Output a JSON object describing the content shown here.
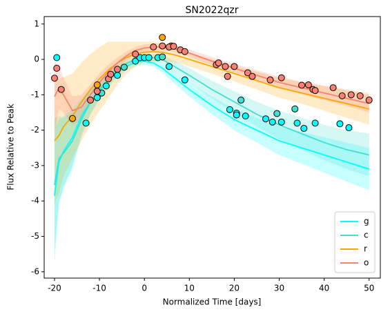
{
  "chart_data": {
    "type": "line",
    "title": "SN2022qzr",
    "xlabel": "Normalized Time [days]",
    "ylabel": "Flux Relative to Peak",
    "xlim": [
      -22.3,
      52.5
    ],
    "ylim": [
      -6.18,
      1.21
    ],
    "xticks": [
      -20,
      -10,
      0,
      10,
      20,
      30,
      40,
      50
    ],
    "yticks": [
      1,
      0,
      -1,
      -2,
      -3,
      -4,
      -5,
      -6
    ],
    "legend": "lower right",
    "x": [
      -20,
      -19,
      -18,
      -16,
      -14,
      -12,
      -10,
      -8,
      -6,
      -4,
      -2,
      0,
      2,
      4,
      6,
      8,
      10,
      15,
      20,
      25,
      30,
      35,
      40,
      45,
      50
    ],
    "series": [
      {
        "name": "g",
        "color": "#00ffff",
        "values": [
          -3.85,
          -2.9,
          -2.6,
          -2.2,
          -1.6,
          -1.2,
          -0.9,
          -0.6,
          -0.35,
          -0.2,
          -0.08,
          -0.05,
          -0.1,
          -0.25,
          -0.45,
          -0.65,
          -0.85,
          -1.3,
          -1.7,
          -2.0,
          -2.3,
          -2.5,
          -2.7,
          -2.9,
          -3.1
        ],
        "lower": [
          -5.75,
          -4.1,
          -3.6,
          -3.0,
          -2.1,
          -1.55,
          -1.15,
          -0.8,
          -0.5,
          -0.32,
          -0.18,
          -0.15,
          -0.2,
          -0.37,
          -0.6,
          -0.83,
          -1.05,
          -1.55,
          -2.0,
          -2.35,
          -2.7,
          -2.95,
          -3.2,
          -3.45,
          -3.7
        ],
        "upper": [
          -1.95,
          -1.7,
          -1.6,
          -1.4,
          -1.1,
          -0.85,
          -0.65,
          -0.4,
          -0.2,
          -0.08,
          0.02,
          0.05,
          0.0,
          -0.13,
          -0.3,
          -0.47,
          -0.65,
          -1.05,
          -1.4,
          -1.65,
          -1.9,
          -2.05,
          -2.2,
          -2.35,
          -2.5
        ],
        "points_x": [
          -19.5,
          -13,
          -10.5,
          -8.5,
          -6,
          -2,
          -1,
          0,
          1,
          3,
          5.5,
          9,
          19,
          20.5,
          20.5,
          22.5,
          27,
          28.5,
          30.5,
          34,
          35.5,
          38,
          43.5,
          45.5
        ],
        "points_y": [
          0.05,
          -1.8,
          -1.08,
          -0.75,
          -0.45,
          -0.05,
          0.05,
          0.05,
          0.05,
          0.05,
          -0.2,
          -0.58,
          -1.42,
          -1.52,
          -1.57,
          -1.6,
          -1.68,
          -1.77,
          -1.77,
          -1.8,
          -1.95,
          -1.8,
          -1.82,
          -1.93
        ]
      },
      {
        "name": "c",
        "color": "#40e0d0",
        "values": [
          -3.55,
          -2.8,
          -2.65,
          -2.3,
          -1.7,
          -1.2,
          -0.85,
          -0.55,
          -0.3,
          -0.12,
          0.0,
          0.05,
          0.05,
          0.0,
          -0.15,
          -0.3,
          -0.45,
          -0.85,
          -1.2,
          -1.55,
          -1.85,
          -2.1,
          -2.35,
          -2.55,
          -2.7
        ],
        "lower": [
          -5.45,
          -4.0,
          -3.65,
          -3.1,
          -2.2,
          -1.55,
          -1.1,
          -0.75,
          -0.45,
          -0.24,
          -0.1,
          -0.05,
          -0.05,
          -0.12,
          -0.3,
          -0.48,
          -0.65,
          -1.1,
          -1.5,
          -1.9,
          -2.25,
          -2.55,
          -2.85,
          -3.1,
          -3.3
        ],
        "upper": [
          -1.65,
          -1.6,
          -1.65,
          -1.5,
          -1.2,
          -0.85,
          -0.6,
          -0.35,
          -0.15,
          0.0,
          0.1,
          0.15,
          0.15,
          0.12,
          0.0,
          -0.12,
          -0.25,
          -0.6,
          -0.9,
          -1.2,
          -1.45,
          -1.65,
          -1.85,
          -2.0,
          -2.1
        ],
        "points_x": [
          -9.5,
          -4.5,
          4,
          21.5,
          29.5,
          33.5
        ],
        "points_y": [
          -0.95,
          -0.22,
          0.07,
          -1.15,
          -1.53,
          -1.4
        ]
      },
      {
        "name": "r",
        "color": "#ffa500",
        "values": [
          -2.3,
          -2.15,
          -1.9,
          -1.6,
          -1.2,
          -0.85,
          -0.55,
          -0.3,
          -0.1,
          0.05,
          0.15,
          0.2,
          0.22,
          0.2,
          0.15,
          0.08,
          0.0,
          -0.2,
          -0.4,
          -0.6,
          -0.8,
          -0.95,
          -1.1,
          -1.25,
          -1.4
        ],
        "lower": [
          -4.1,
          -3.75,
          -3.3,
          -2.8,
          -2.3,
          -1.85,
          -1.45,
          -1.1,
          -0.7,
          -0.4,
          -0.2,
          -0.1,
          -0.06,
          -0.05,
          -0.07,
          -0.12,
          -0.2,
          -0.4,
          -0.62,
          -0.85,
          -1.08,
          -1.25,
          -1.45,
          -1.65,
          -1.85
        ],
        "upper": [
          -0.5,
          -0.55,
          -0.5,
          -0.4,
          -0.1,
          0.15,
          0.35,
          0.5,
          0.5,
          0.5,
          0.5,
          0.5,
          0.5,
          0.45,
          0.37,
          0.28,
          0.2,
          0.0,
          -0.18,
          -0.35,
          -0.52,
          -0.65,
          -0.75,
          -0.85,
          -0.95
        ],
        "points_x": [
          -16,
          -10.5,
          4,
          6
        ],
        "points_y": [
          -1.67,
          -0.72,
          0.62,
          0.38
        ]
      },
      {
        "name": "o",
        "color": "#fa8072",
        "values": [
          -1.05,
          -0.8,
          -1.0,
          -1.45,
          -1.35,
          -1.0,
          -0.65,
          -0.35,
          -0.1,
          0.1,
          0.25,
          0.32,
          0.35,
          0.35,
          0.32,
          0.25,
          0.18,
          -0.05,
          -0.25,
          -0.45,
          -0.65,
          -0.8,
          -0.95,
          -1.1,
          -1.25
        ],
        "lower": [
          -2.05,
          -1.4,
          -1.5,
          -1.85,
          -1.7,
          -1.3,
          -0.9,
          -0.55,
          -0.25,
          -0.02,
          0.15,
          0.22,
          0.25,
          0.25,
          0.22,
          0.15,
          0.08,
          -0.17,
          -0.37,
          -0.6,
          -0.8,
          -0.98,
          -1.15,
          -1.32,
          -1.5
        ],
        "upper": [
          -0.05,
          -0.2,
          -0.5,
          -1.05,
          -1.0,
          -0.7,
          -0.4,
          -0.15,
          0.05,
          0.22,
          0.35,
          0.42,
          0.45,
          0.45,
          0.42,
          0.35,
          0.28,
          0.07,
          -0.13,
          -0.3,
          -0.5,
          -0.62,
          -0.75,
          -0.88,
          -1.0
        ],
        "points_x": [
          -20,
          -19.5,
          -18.5,
          -12,
          -10.5,
          -8,
          -7.5,
          -6,
          -2,
          2,
          4,
          5.5,
          6.5,
          8,
          9,
          16,
          16.5,
          18,
          18.5,
          20,
          23,
          24,
          28,
          30.5,
          35,
          36.5,
          37.5,
          38,
          42,
          44,
          46,
          48,
          50
        ],
        "points_y": [
          -0.53,
          -0.25,
          -0.85,
          -1.15,
          -0.9,
          -0.55,
          -0.42,
          -0.28,
          0.15,
          0.35,
          0.38,
          0.35,
          0.37,
          0.27,
          0.22,
          -0.15,
          -0.1,
          -0.2,
          -0.48,
          -0.2,
          -0.38,
          -0.48,
          -0.58,
          -0.52,
          -0.73,
          -0.72,
          -0.85,
          -0.88,
          -0.8,
          -1.03,
          -1.0,
          -1.03,
          -1.15
        ]
      }
    ]
  }
}
